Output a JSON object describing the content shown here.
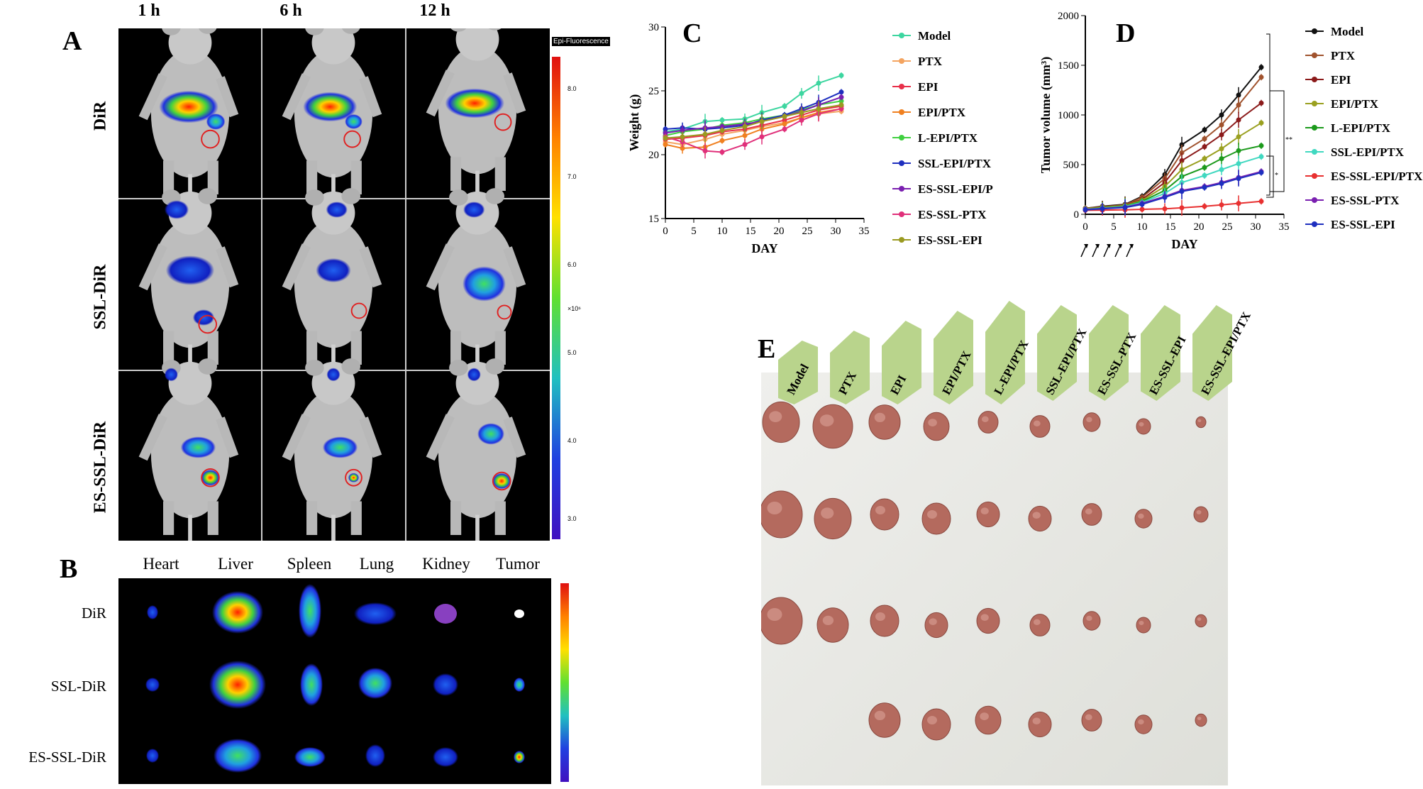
{
  "panel_labels": {
    "a": "A",
    "b": "B",
    "c": "C",
    "d": "D",
    "e": "E"
  },
  "panel_a": {
    "columns": [
      "1 h",
      "6 h",
      "12 h"
    ],
    "rows": [
      "DiR",
      "SSL-DiR",
      "ES-SSL-DiR"
    ],
    "colorbar_title": "Epi-Fluorescence",
    "colorbar_ticks": [
      "8.0",
      "7.0",
      "6.0",
      "5.0",
      "4.0",
      "3.0"
    ],
    "colorbar_unit": "×10⁶",
    "colors": {
      "high": "#e00000",
      "mid": "#40c040",
      "low": "#2020d0"
    }
  },
  "panel_b": {
    "organs": [
      "Heart",
      "Liver",
      "Spleen",
      "Lung",
      "Kidney",
      "Tumor"
    ],
    "rows": [
      "DiR",
      "SSL-DiR",
      "ES-SSL-DiR"
    ]
  },
  "chart_data": [
    {
      "type": "line",
      "panel": "C",
      "title": "C",
      "xlabel": "DAY",
      "ylabel": "Weight (g)",
      "xlim": [
        0,
        35
      ],
      "ylim": [
        15,
        30
      ],
      "xticks": [
        0,
        5,
        10,
        15,
        20,
        25,
        30,
        35
      ],
      "yticks": [
        15,
        20,
        25,
        30
      ],
      "x": [
        0,
        3,
        7,
        10,
        14,
        17,
        21,
        24,
        27,
        31
      ],
      "series": [
        {
          "name": "Model",
          "color": "#3dd6a0",
          "values": [
            21.8,
            22.0,
            22.6,
            22.7,
            22.8,
            23.3,
            23.8,
            24.8,
            25.6,
            26.2
          ]
        },
        {
          "name": "PTX",
          "color": "#f4a460",
          "values": [
            21.0,
            20.8,
            21.2,
            21.6,
            21.9,
            22.2,
            22.5,
            22.9,
            23.2,
            23.4
          ]
        },
        {
          "name": "EPI",
          "color": "#e8304a",
          "values": [
            21.2,
            21.3,
            21.5,
            21.8,
            22.0,
            22.3,
            22.7,
            23.1,
            23.5,
            23.8
          ]
        },
        {
          "name": "EPI/PTX",
          "color": "#f08020",
          "values": [
            20.8,
            20.5,
            20.6,
            21.1,
            21.5,
            22.0,
            22.4,
            22.9,
            23.3,
            23.6
          ]
        },
        {
          "name": "L-EPI/PTX",
          "color": "#40d040",
          "values": [
            21.5,
            21.8,
            22.0,
            22.3,
            22.5,
            22.8,
            23.1,
            23.5,
            23.9,
            24.2
          ]
        },
        {
          "name": "SSL-EPI/PTX",
          "color": "#1e2fbf",
          "values": [
            22.0,
            22.1,
            22.0,
            22.1,
            22.3,
            22.7,
            23.1,
            23.6,
            24.1,
            24.9
          ]
        },
        {
          "name": "ES-SSL-EPI/PTX",
          "color": "#7a1fb0",
          "values": [
            21.7,
            21.9,
            22.1,
            22.2,
            22.4,
            22.6,
            23.0,
            23.4,
            23.9,
            24.5
          ]
        },
        {
          "name": "ES-SSL-PTX",
          "color": "#e0307a",
          "values": [
            21.4,
            21.0,
            20.3,
            20.2,
            20.8,
            21.4,
            22.0,
            22.7,
            23.2,
            23.6
          ]
        },
        {
          "name": "ES-SSL-EPI",
          "color": "#9a9a20",
          "values": [
            21.3,
            21.4,
            21.6,
            21.9,
            22.2,
            22.6,
            23.0,
            23.3,
            23.6,
            23.9
          ]
        }
      ]
    },
    {
      "type": "line",
      "panel": "D",
      "title": "D",
      "xlabel": "DAY",
      "ylabel": "Tumor volume (mm³)",
      "xlim": [
        0,
        35
      ],
      "ylim": [
        0,
        2000
      ],
      "xticks": [
        0,
        5,
        10,
        15,
        20,
        25,
        30,
        35
      ],
      "yticks": [
        0,
        500,
        1000,
        1500,
        2000
      ],
      "dosing_days": [
        0,
        2,
        4,
        6,
        8
      ],
      "x": [
        0,
        3,
        7,
        10,
        14,
        17,
        21,
        24,
        27,
        31
      ],
      "series": [
        {
          "name": "Model",
          "color": "#111111",
          "values": [
            60,
            80,
            100,
            180,
            400,
            700,
            850,
            1000,
            1200,
            1480
          ]
        },
        {
          "name": "PTX",
          "color": "#a0522d",
          "values": [
            60,
            75,
            95,
            170,
            360,
            620,
            760,
            900,
            1100,
            1380
          ]
        },
        {
          "name": "EPI",
          "color": "#8b1a1a",
          "values": [
            55,
            72,
            90,
            150,
            320,
            540,
            680,
            800,
            950,
            1120
          ]
        },
        {
          "name": "EPI/PTX",
          "color": "#9aa020",
          "values": [
            55,
            70,
            88,
            140,
            280,
            450,
            560,
            660,
            780,
            920
          ]
        },
        {
          "name": "L-EPI/PTX",
          "color": "#1c9a1c",
          "values": [
            50,
            65,
            82,
            130,
            240,
            380,
            470,
            560,
            640,
            690
          ]
        },
        {
          "name": "SSL-EPI/PTX",
          "color": "#40d8c0",
          "values": [
            50,
            62,
            78,
            120,
            210,
            320,
            390,
            450,
            510,
            580
          ]
        },
        {
          "name": "ES-SSL-EPI/PTX",
          "color": "#e83030",
          "values": [
            40,
            42,
            45,
            50,
            55,
            65,
            80,
            95,
            110,
            130
          ]
        },
        {
          "name": "ES-SSL-PTX",
          "color": "#7a1fb0",
          "values": [
            48,
            58,
            72,
            110,
            180,
            240,
            280,
            320,
            370,
            430
          ]
        },
        {
          "name": "ES-SSL-EPI",
          "color": "#1e2fbf",
          "values": [
            45,
            55,
            68,
            100,
            170,
            230,
            270,
            310,
            360,
            420
          ]
        }
      ],
      "significance_marks": [
        "**",
        "*"
      ]
    }
  ],
  "panel_e": {
    "groups": [
      "Model",
      "PTX",
      "EPI",
      "EPI/PTX",
      "L-EPI/PTX",
      "SSL-EPI/PTX",
      "ES-SSL-PTX",
      "ES-SSL-EPI",
      "ES-SSL-EPI/PTX"
    ],
    "background_color": "#e6e7e2",
    "tab_color": "#b9d48c",
    "tumor_color": "#b46a5e"
  }
}
